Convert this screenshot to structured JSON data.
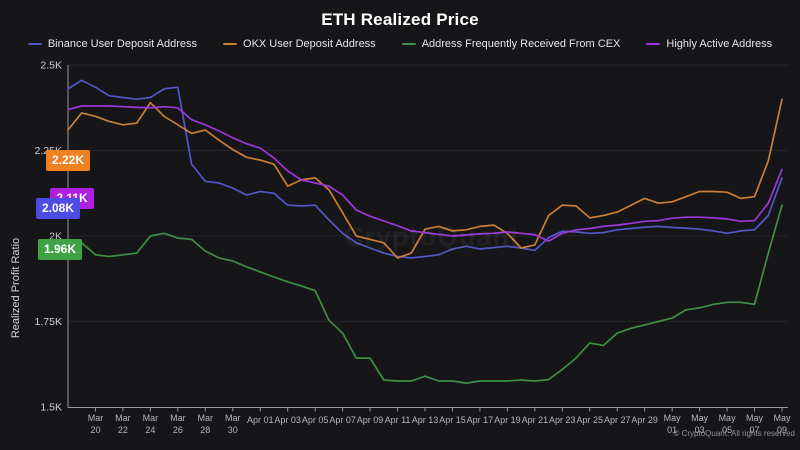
{
  "title": "ETH Realized Price",
  "legend": [
    {
      "label": "Binance User Deposit Address",
      "color": "#5456c8"
    },
    {
      "label": "OKX User Deposit Address",
      "color": "#c97e36"
    },
    {
      "label": "Address Frequently Received From CEX",
      "color": "#3e8f43"
    },
    {
      "label": "Highly Active Address",
      "color": "#9e37d8"
    }
  ],
  "y_axis": {
    "title": "Realized Profit Ratio",
    "ticks": [
      {
        "label": "2.5K",
        "value": 2.5
      },
      {
        "label": "2.25K",
        "value": 2.25
      },
      {
        "label": "2K",
        "value": 2.0
      },
      {
        "label": "1.75K",
        "value": 1.75
      },
      {
        "label": "1.5K",
        "value": 1.5
      }
    ]
  },
  "badges": [
    {
      "label": "2.22K",
      "value": 2.22,
      "color": "#ef8122"
    },
    {
      "label": "2.11K",
      "value": 2.11,
      "color": "#ae1fe0"
    },
    {
      "label": "2.08K",
      "value": 2.08,
      "color": "#4c4ce4"
    },
    {
      "label": "1.96K",
      "value": 1.96,
      "color": "#3fa346"
    }
  ],
  "watermark": "CryptoQuant",
  "footer": "© CryptoQuant. All rights reserved",
  "chart_data": {
    "type": "line",
    "title": "ETH Realized Price",
    "ylabel": "Realized Profit Ratio",
    "ylim": [
      1.5,
      2.5
    ],
    "yticks": [
      1.5,
      1.75,
      2.0,
      2.25,
      2.5
    ],
    "grid": "horizontal",
    "legend_position": "top",
    "x_tick_start": 2,
    "x_tick_step": 2,
    "x": [
      "Mar 18",
      "Mar 19",
      "Mar 20",
      "Mar 21",
      "Mar 22",
      "Mar 23",
      "Mar 24",
      "Mar 25",
      "Mar 26",
      "Mar 27",
      "Mar 28",
      "Mar 29",
      "Mar 30",
      "Mar 31",
      "Apr 01",
      "Apr 02",
      "Apr 03",
      "Apr 04",
      "Apr 05",
      "Apr 06",
      "Apr 07",
      "Apr 08",
      "Apr 09",
      "Apr 10",
      "Apr 11",
      "Apr 12",
      "Apr 13",
      "Apr 14",
      "Apr 15",
      "Apr 16",
      "Apr 17",
      "Apr 18",
      "Apr 19",
      "Apr 20",
      "Apr 21",
      "Apr 22",
      "Apr 23",
      "Apr 24",
      "Apr 25",
      "Apr 26",
      "Apr 27",
      "Apr 28",
      "Apr 29",
      "Apr 30",
      "May 01",
      "May 02",
      "May 03",
      "May 04",
      "May 05",
      "May 06",
      "May 07",
      "May 08",
      "May 09"
    ],
    "series": [
      {
        "name": "Binance User Deposit Address",
        "color": "#5456c8",
        "values": [
          2.43,
          2.455,
          2.435,
          2.41,
          2.405,
          2.4,
          2.405,
          2.43,
          2.435,
          2.21,
          2.16,
          2.155,
          2.14,
          2.12,
          2.13,
          2.125,
          2.09,
          2.088,
          2.09,
          2.047,
          2.008,
          1.98,
          1.965,
          1.95,
          1.94,
          1.936,
          1.94,
          1.945,
          1.962,
          1.97,
          1.962,
          1.966,
          1.97,
          1.965,
          1.958,
          1.995,
          2.014,
          2.012,
          2.008,
          2.01,
          2.018,
          2.022,
          2.026,
          2.028,
          2.025,
          2.023,
          2.02,
          2.015,
          2.008,
          2.015,
          2.018,
          2.06,
          2.17
        ]
      },
      {
        "name": "OKX User Deposit Address",
        "color": "#c97e36",
        "values": [
          2.31,
          2.36,
          2.35,
          2.335,
          2.325,
          2.33,
          2.39,
          2.35,
          2.325,
          2.3,
          2.31,
          2.28,
          2.253,
          2.23,
          2.222,
          2.21,
          2.146,
          2.164,
          2.17,
          2.135,
          2.068,
          2.0,
          1.99,
          1.98,
          1.936,
          1.95,
          2.02,
          2.028,
          2.015,
          2.018,
          2.028,
          2.032,
          2.008,
          1.965,
          1.974,
          2.06,
          2.09,
          2.088,
          2.053,
          2.06,
          2.07,
          2.09,
          2.11,
          2.096,
          2.1,
          2.115,
          2.13,
          2.13,
          2.128,
          2.11,
          2.115,
          2.22,
          2.4
        ]
      },
      {
        "name": "Address Frequently Received From CEX",
        "color": "#3e8f43",
        "values": [
          1.965,
          1.98,
          1.945,
          1.94,
          1.945,
          1.95,
          2.0,
          2.008,
          1.994,
          1.99,
          1.956,
          1.936,
          1.927,
          1.91,
          1.895,
          1.88,
          1.866,
          1.854,
          1.84,
          1.754,
          1.716,
          1.643,
          1.643,
          1.579,
          1.576,
          1.576,
          1.59,
          1.576,
          1.576,
          1.57,
          1.576,
          1.576,
          1.576,
          1.579,
          1.576,
          1.58,
          1.61,
          1.643,
          1.687,
          1.68,
          1.716,
          1.73,
          1.74,
          1.75,
          1.76,
          1.784,
          1.79,
          1.8,
          1.806,
          1.806,
          1.8,
          1.95,
          2.09
        ]
      },
      {
        "name": "Highly Active Address",
        "color": "#9e37d8",
        "values": [
          2.37,
          2.38,
          2.38,
          2.38,
          2.378,
          2.376,
          2.375,
          2.378,
          2.375,
          2.34,
          2.325,
          2.307,
          2.287,
          2.27,
          2.257,
          2.228,
          2.19,
          2.164,
          2.155,
          2.146,
          2.12,
          2.076,
          2.058,
          2.044,
          2.03,
          2.015,
          2.01,
          2.005,
          2.0,
          2.003,
          2.006,
          2.008,
          2.012,
          2.008,
          2.004,
          1.985,
          2.008,
          2.018,
          2.022,
          2.028,
          2.032,
          2.037,
          2.043,
          2.045,
          2.052,
          2.055,
          2.055,
          2.053,
          2.05,
          2.043,
          2.045,
          2.096,
          2.195
        ]
      }
    ]
  }
}
